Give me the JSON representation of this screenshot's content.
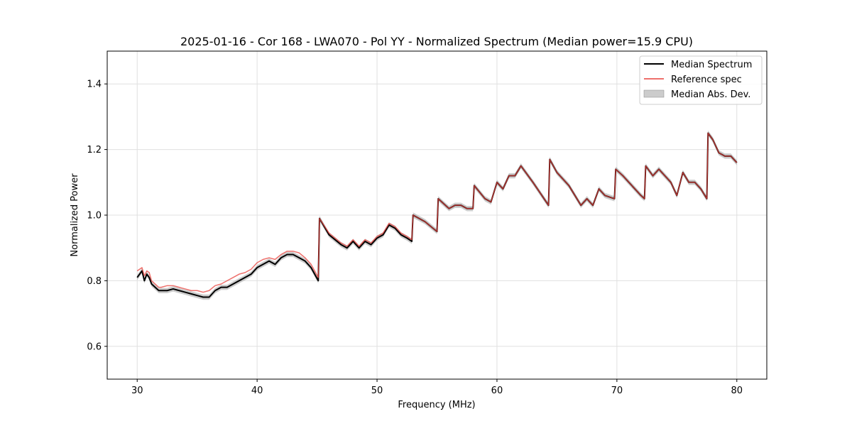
{
  "chart_data": {
    "type": "line",
    "title": "2025-01-16 - Cor 168 - LWA070 - Pol YY - Normalized Spectrum (Median power=15.9 CPU)",
    "xlabel": "Frequency (MHz)",
    "ylabel": "Normalized Power",
    "xlim": [
      27.5,
      82.5
    ],
    "ylim": [
      0.5,
      1.5
    ],
    "xticks": [
      30,
      40,
      50,
      60,
      70,
      80
    ],
    "yticks": [
      0.6,
      0.8,
      1.0,
      1.2,
      1.4
    ],
    "xtick_labels": [
      "30",
      "40",
      "50",
      "60",
      "70",
      "80"
    ],
    "ytick_labels": [
      "0.6",
      "0.8",
      "1.0",
      "1.2",
      "1.4"
    ],
    "grid": true,
    "legend_position": "top-right",
    "mad_band_halfwidth": 0.008,
    "series": [
      {
        "name": "Median Spectrum",
        "color": "#000000",
        "x": [
          30.0,
          30.2,
          30.4,
          30.6,
          30.8,
          31.0,
          31.2,
          31.5,
          31.8,
          32.0,
          32.5,
          33.0,
          33.5,
          34.0,
          34.5,
          35.0,
          35.5,
          36.0,
          36.5,
          37.0,
          37.5,
          38.0,
          38.5,
          39.0,
          39.5,
          40.0,
          40.5,
          41.0,
          41.5,
          42.0,
          42.5,
          43.0,
          43.5,
          44.0,
          44.5,
          45.1,
          45.2,
          46.0,
          47.0,
          47.5,
          48.0,
          48.5,
          49.0,
          49.5,
          50.0,
          50.5,
          51.0,
          51.5,
          52.0,
          52.5,
          52.9,
          53.0,
          54.0,
          55.0,
          55.1,
          56.0,
          56.5,
          57.0,
          57.5,
          58.0,
          58.1,
          59.0,
          59.5,
          60.0,
          60.5,
          61.0,
          61.5,
          62.0,
          63.0,
          64.3,
          64.4,
          65.0,
          66.0,
          67.0,
          67.5,
          68.0,
          68.5,
          69.0,
          69.8,
          69.9,
          70.5,
          71.0,
          71.5,
          72.0,
          72.3,
          72.4,
          73.0,
          73.5,
          74.0,
          74.5,
          75.0,
          75.5,
          76.0,
          76.5,
          77.0,
          77.5,
          77.6,
          78.0,
          78.5,
          79.0,
          79.5,
          80.0
        ],
        "values": [
          0.81,
          0.82,
          0.83,
          0.8,
          0.82,
          0.81,
          0.79,
          0.78,
          0.77,
          0.77,
          0.77,
          0.775,
          0.77,
          0.765,
          0.76,
          0.755,
          0.75,
          0.75,
          0.77,
          0.78,
          0.78,
          0.79,
          0.8,
          0.81,
          0.82,
          0.84,
          0.85,
          0.86,
          0.85,
          0.87,
          0.88,
          0.88,
          0.87,
          0.86,
          0.84,
          0.8,
          0.99,
          0.94,
          0.91,
          0.9,
          0.92,
          0.9,
          0.92,
          0.91,
          0.93,
          0.94,
          0.97,
          0.96,
          0.94,
          0.93,
          0.92,
          1.0,
          0.98,
          0.95,
          1.05,
          1.02,
          1.03,
          1.03,
          1.02,
          1.02,
          1.09,
          1.05,
          1.04,
          1.1,
          1.08,
          1.12,
          1.12,
          1.15,
          1.1,
          1.03,
          1.17,
          1.13,
          1.09,
          1.03,
          1.05,
          1.03,
          1.08,
          1.06,
          1.05,
          1.14,
          1.12,
          1.1,
          1.08,
          1.06,
          1.05,
          1.15,
          1.12,
          1.14,
          1.12,
          1.1,
          1.06,
          1.13,
          1.1,
          1.1,
          1.08,
          1.05,
          1.25,
          1.23,
          1.19,
          1.18,
          1.18,
          1.16
        ]
      },
      {
        "name": "Reference spec",
        "color": "#e8413c",
        "x": [
          30.0,
          30.2,
          30.4,
          30.6,
          30.8,
          31.0,
          31.2,
          31.5,
          31.8,
          32.0,
          32.5,
          33.0,
          33.5,
          34.0,
          34.5,
          35.0,
          35.5,
          36.0,
          36.5,
          37.0,
          37.5,
          38.0,
          38.5,
          39.0,
          39.5,
          40.0,
          40.5,
          41.0,
          41.5,
          42.0,
          42.5,
          43.0,
          43.5,
          44.0,
          44.5,
          45.1,
          45.2,
          46.0,
          47.0,
          47.5,
          48.0,
          48.5,
          49.0,
          49.5,
          50.0,
          50.5,
          51.0,
          51.5,
          52.0,
          52.5,
          52.9,
          53.0,
          54.0,
          55.0,
          55.1,
          56.0,
          56.5,
          57.0,
          57.5,
          58.0,
          58.1,
          59.0,
          59.5,
          60.0,
          60.5,
          61.0,
          61.5,
          62.0,
          63.0,
          64.3,
          64.4,
          65.0,
          66.0,
          67.0,
          67.5,
          68.0,
          68.5,
          69.0,
          69.8,
          69.9,
          70.5,
          71.0,
          71.5,
          72.0,
          72.3,
          72.4,
          73.0,
          73.5,
          74.0,
          74.5,
          75.0,
          75.5,
          76.0,
          76.5,
          77.0,
          77.5,
          77.6,
          78.0,
          78.5,
          79.0,
          79.5,
          80.0
        ],
        "values": [
          0.83,
          0.835,
          0.84,
          0.815,
          0.83,
          0.825,
          0.8,
          0.79,
          0.78,
          0.78,
          0.785,
          0.785,
          0.78,
          0.775,
          0.77,
          0.77,
          0.765,
          0.77,
          0.785,
          0.79,
          0.8,
          0.81,
          0.82,
          0.825,
          0.835,
          0.855,
          0.865,
          0.87,
          0.865,
          0.88,
          0.89,
          0.89,
          0.885,
          0.87,
          0.85,
          0.81,
          0.99,
          0.945,
          0.915,
          0.905,
          0.925,
          0.905,
          0.925,
          0.915,
          0.935,
          0.945,
          0.975,
          0.965,
          0.945,
          0.935,
          0.925,
          1.0,
          0.98,
          0.95,
          1.05,
          1.02,
          1.03,
          1.03,
          1.02,
          1.02,
          1.09,
          1.05,
          1.04,
          1.1,
          1.08,
          1.12,
          1.12,
          1.15,
          1.1,
          1.03,
          1.17,
          1.13,
          1.09,
          1.03,
          1.05,
          1.03,
          1.08,
          1.06,
          1.05,
          1.14,
          1.12,
          1.1,
          1.08,
          1.06,
          1.05,
          1.15,
          1.12,
          1.14,
          1.12,
          1.1,
          1.06,
          1.13,
          1.1,
          1.1,
          1.08,
          1.05,
          1.25,
          1.23,
          1.19,
          1.18,
          1.18,
          1.16
        ]
      }
    ],
    "band": {
      "name": "Median Abs. Dev.",
      "color": "#888888"
    },
    "legend": [
      "Median Spectrum",
      "Reference spec",
      "Median Abs. Dev."
    ]
  }
}
